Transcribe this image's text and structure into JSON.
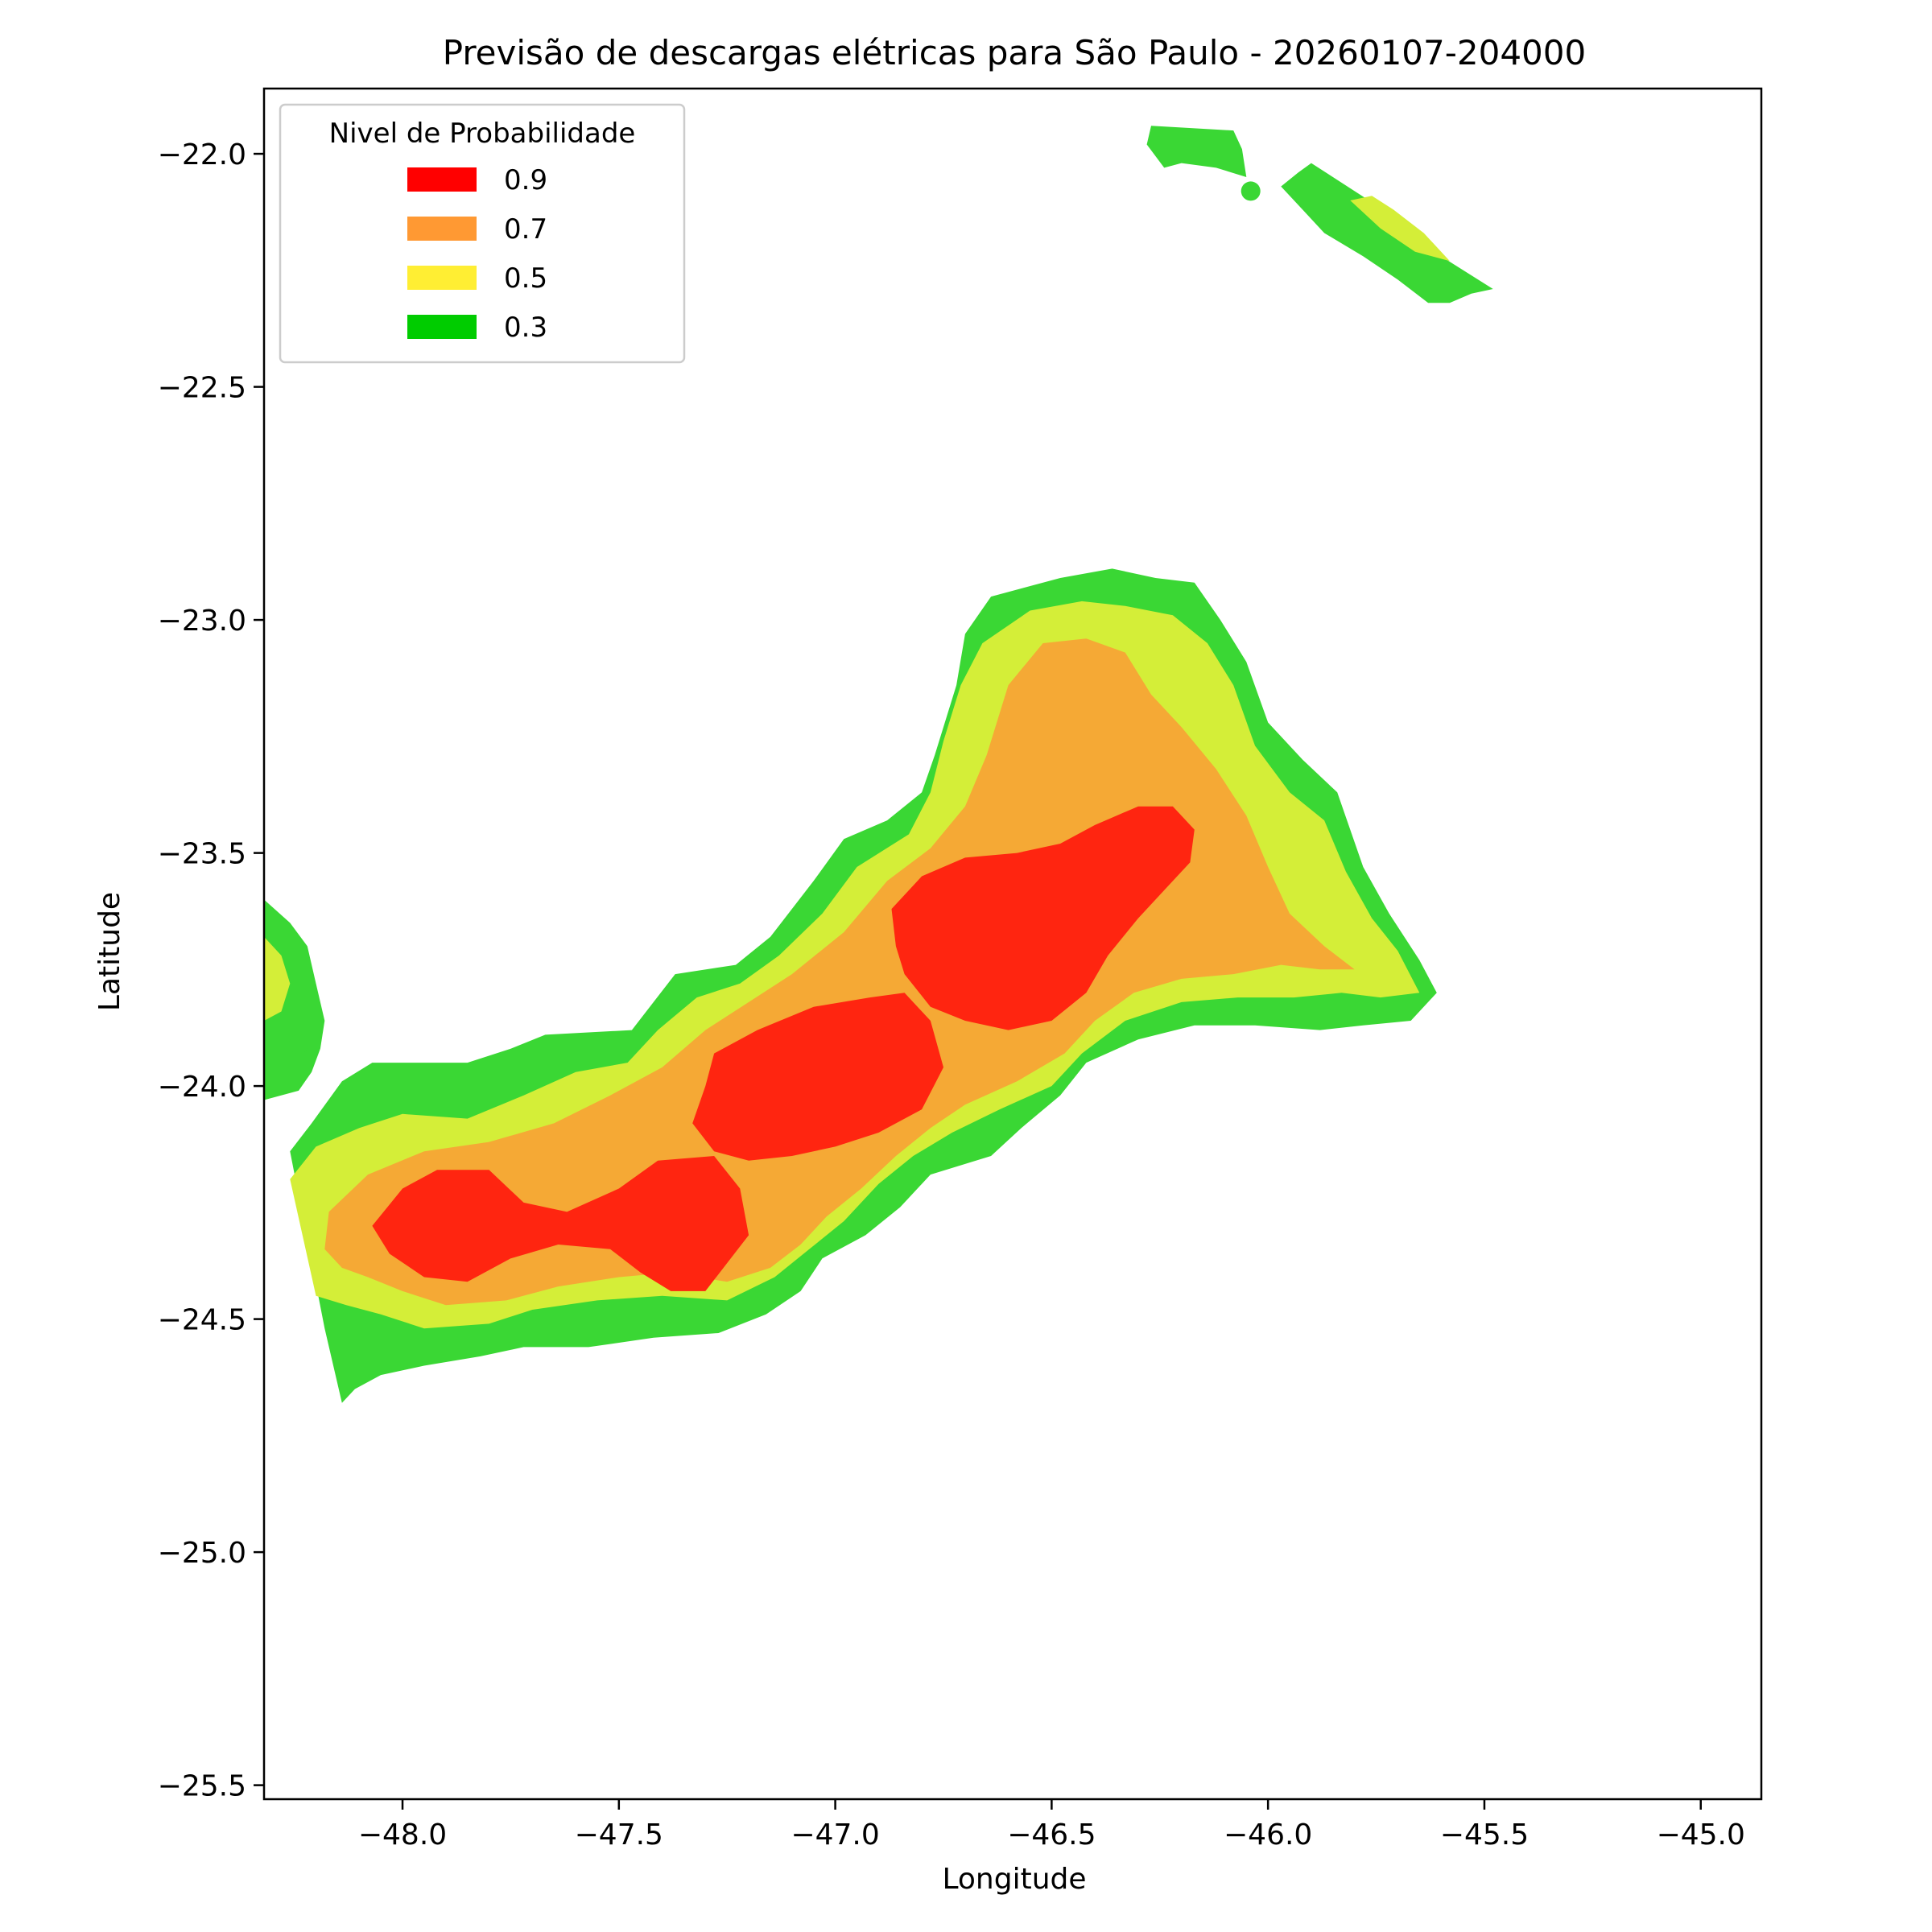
{
  "chart_data": {
    "type": "filled-contour-map",
    "title": "Previsão de descargas elétricas para São Paulo - 20260107-204000",
    "xlabel": "Longitude",
    "ylabel": "Latitude",
    "xlim": [
      -48.32,
      -44.86
    ],
    "ylim": [
      -25.53,
      -21.86
    ],
    "x_ticks": [
      -48.0,
      -47.5,
      -47.0,
      -46.5,
      -46.0,
      -45.5,
      -45.0
    ],
    "x_tick_labels": [
      "−48.0",
      "−47.5",
      "−47.0",
      "−46.5",
      "−46.0",
      "−45.5",
      "−45.0"
    ],
    "y_ticks": [
      -22.0,
      -22.5,
      -23.0,
      -23.5,
      -24.0,
      -24.5,
      -25.0,
      -25.5
    ],
    "y_tick_labels": [
      "−22.0",
      "−22.5",
      "−23.0",
      "−23.5",
      "−24.0",
      "−24.5",
      "−25.0",
      "−25.5"
    ],
    "grid": false,
    "legend": {
      "title": "Nivel de Probabilidade",
      "placement": "top-left",
      "entries": [
        {
          "label": "0.9",
          "color": "#ff0000"
        },
        {
          "label": "0.7",
          "color": "#ff9933"
        },
        {
          "label": "0.5",
          "color": "#ffee33"
        },
        {
          "label": "0.3",
          "color": "#00cc00"
        }
      ]
    },
    "fill_colors": {
      "0.3": "#3ad734",
      "0.5": "#d4ee38",
      "0.7": "#f5a935",
      "0.9": "#ff2510"
    },
    "regions": [
      {
        "level": "0.3",
        "name": "main-band",
        "points": [
          [
            -48.14,
            -24.68
          ],
          [
            -48.18,
            -24.52
          ],
          [
            -48.26,
            -24.14
          ],
          [
            -48.21,
            -24.08
          ],
          [
            -48.14,
            -23.99
          ],
          [
            -48.07,
            -23.95
          ],
          [
            -47.85,
            -23.95
          ],
          [
            -47.75,
            -23.92
          ],
          [
            -47.67,
            -23.89
          ],
          [
            -47.47,
            -23.88
          ],
          [
            -47.42,
            -23.82
          ],
          [
            -47.37,
            -23.76
          ],
          [
            -47.23,
            -23.74
          ],
          [
            -47.15,
            -23.68
          ],
          [
            -47.05,
            -23.56
          ],
          [
            -46.98,
            -23.47
          ],
          [
            -46.88,
            -23.43
          ],
          [
            -46.8,
            -23.37
          ],
          [
            -46.77,
            -23.29
          ],
          [
            -46.72,
            -23.14
          ],
          [
            -46.7,
            -23.03
          ],
          [
            -46.64,
            -22.95
          ],
          [
            -46.48,
            -22.91
          ],
          [
            -46.36,
            -22.89
          ],
          [
            -46.26,
            -22.91
          ],
          [
            -46.17,
            -22.92
          ],
          [
            -46.11,
            -23.0
          ],
          [
            -46.05,
            -23.09
          ],
          [
            -46.0,
            -23.22
          ],
          [
            -45.92,
            -23.3
          ],
          [
            -45.84,
            -23.37
          ],
          [
            -45.78,
            -23.53
          ],
          [
            -45.72,
            -23.63
          ],
          [
            -45.65,
            -23.73
          ],
          [
            -45.61,
            -23.8
          ],
          [
            -45.67,
            -23.86
          ],
          [
            -45.78,
            -23.87
          ],
          [
            -45.88,
            -23.88
          ],
          [
            -46.03,
            -23.87
          ],
          [
            -46.17,
            -23.87
          ],
          [
            -46.3,
            -23.9
          ],
          [
            -46.42,
            -23.95
          ],
          [
            -46.48,
            -24.02
          ],
          [
            -46.57,
            -24.09
          ],
          [
            -46.64,
            -24.15
          ],
          [
            -46.78,
            -24.19
          ],
          [
            -46.85,
            -24.26
          ],
          [
            -46.93,
            -24.32
          ],
          [
            -47.03,
            -24.37
          ],
          [
            -47.08,
            -24.44
          ],
          [
            -47.16,
            -24.49
          ],
          [
            -47.27,
            -24.53
          ],
          [
            -47.42,
            -24.54
          ],
          [
            -47.57,
            -24.56
          ],
          [
            -47.72,
            -24.56
          ],
          [
            -47.82,
            -24.58
          ],
          [
            -47.95,
            -24.6
          ],
          [
            -48.05,
            -24.62
          ],
          [
            -48.11,
            -24.65
          ]
        ]
      },
      {
        "level": "0.3",
        "name": "west-strip",
        "points": [
          [
            -48.32,
            -23.6
          ],
          [
            -48.26,
            -23.65
          ],
          [
            -48.22,
            -23.7
          ],
          [
            -48.2,
            -23.78
          ],
          [
            -48.18,
            -23.86
          ],
          [
            -48.19,
            -23.92
          ],
          [
            -48.21,
            -23.97
          ],
          [
            -48.24,
            -24.01
          ],
          [
            -48.32,
            -24.03
          ]
        ]
      },
      {
        "level": "0.3",
        "name": "northeast-upper",
        "points": [
          [
            -46.27,
            -21.94
          ],
          [
            -46.08,
            -21.95
          ],
          [
            -46.06,
            -21.99
          ],
          [
            -46.05,
            -22.05
          ],
          [
            -46.12,
            -22.03
          ],
          [
            -46.2,
            -22.02
          ],
          [
            -46.24,
            -22.03
          ],
          [
            -46.28,
            -21.98
          ]
        ]
      },
      {
        "level": "0.3",
        "name": "northeast-lower",
        "points": [
          [
            -45.9,
            -22.02
          ],
          [
            -45.8,
            -22.08
          ],
          [
            -45.7,
            -22.14
          ],
          [
            -45.6,
            -22.22
          ],
          [
            -45.48,
            -22.29
          ],
          [
            -45.53,
            -22.3
          ],
          [
            -45.58,
            -22.32
          ],
          [
            -45.63,
            -22.32
          ],
          [
            -45.7,
            -22.27
          ],
          [
            -45.78,
            -22.22
          ],
          [
            -45.87,
            -22.17
          ],
          [
            -45.92,
            -22.12
          ],
          [
            -45.97,
            -22.07
          ],
          [
            -45.93,
            -22.04
          ]
        ]
      },
      {
        "level": "0.5",
        "name": "main-band",
        "points": [
          [
            -48.2,
            -24.45
          ],
          [
            -48.26,
            -24.2
          ],
          [
            -48.2,
            -24.13
          ],
          [
            -48.1,
            -24.09
          ],
          [
            -48.0,
            -24.06
          ],
          [
            -47.85,
            -24.07
          ],
          [
            -47.72,
            -24.02
          ],
          [
            -47.6,
            -23.97
          ],
          [
            -47.48,
            -23.95
          ],
          [
            -47.41,
            -23.88
          ],
          [
            -47.32,
            -23.81
          ],
          [
            -47.22,
            -23.78
          ],
          [
            -47.13,
            -23.72
          ],
          [
            -47.03,
            -23.63
          ],
          [
            -46.95,
            -23.53
          ],
          [
            -46.83,
            -23.46
          ],
          [
            -46.78,
            -23.37
          ],
          [
            -46.75,
            -23.26
          ],
          [
            -46.71,
            -23.14
          ],
          [
            -46.66,
            -23.05
          ],
          [
            -46.55,
            -22.98
          ],
          [
            -46.43,
            -22.96
          ],
          [
            -46.33,
            -22.97
          ],
          [
            -46.22,
            -22.99
          ],
          [
            -46.14,
            -23.05
          ],
          [
            -46.08,
            -23.14
          ],
          [
            -46.03,
            -23.27
          ],
          [
            -45.95,
            -23.37
          ],
          [
            -45.87,
            -23.43
          ],
          [
            -45.82,
            -23.54
          ],
          [
            -45.76,
            -23.64
          ],
          [
            -45.7,
            -23.71
          ],
          [
            -45.65,
            -23.8
          ],
          [
            -45.74,
            -23.81
          ],
          [
            -45.83,
            -23.8
          ],
          [
            -45.94,
            -23.81
          ],
          [
            -46.07,
            -23.81
          ],
          [
            -46.2,
            -23.82
          ],
          [
            -46.33,
            -23.86
          ],
          [
            -46.43,
            -23.93
          ],
          [
            -46.5,
            -24.0
          ],
          [
            -46.62,
            -24.05
          ],
          [
            -46.73,
            -24.1
          ],
          [
            -46.82,
            -24.15
          ],
          [
            -46.9,
            -24.21
          ],
          [
            -46.98,
            -24.29
          ],
          [
            -47.06,
            -24.35
          ],
          [
            -47.14,
            -24.41
          ],
          [
            -47.25,
            -24.46
          ],
          [
            -47.4,
            -24.45
          ],
          [
            -47.55,
            -24.46
          ],
          [
            -47.7,
            -24.48
          ],
          [
            -47.8,
            -24.51
          ],
          [
            -47.95,
            -24.52
          ],
          [
            -48.05,
            -24.49
          ],
          [
            -48.13,
            -24.47
          ]
        ]
      },
      {
        "level": "0.5",
        "name": "west-strip",
        "points": [
          [
            -48.32,
            -23.68
          ],
          [
            -48.28,
            -23.72
          ],
          [
            -48.26,
            -23.78
          ],
          [
            -48.28,
            -23.84
          ],
          [
            -48.32,
            -23.86
          ]
        ]
      },
      {
        "level": "0.5",
        "name": "northeast-lower",
        "points": [
          [
            -45.81,
            -22.1
          ],
          [
            -45.74,
            -22.16
          ],
          [
            -45.66,
            -22.21
          ],
          [
            -45.58,
            -22.23
          ],
          [
            -45.64,
            -22.17
          ],
          [
            -45.71,
            -22.12
          ],
          [
            -45.76,
            -22.09
          ]
        ]
      },
      {
        "level": "0.7",
        "name": "main-band",
        "points": [
          [
            -48.18,
            -24.35
          ],
          [
            -48.17,
            -24.27
          ],
          [
            -48.08,
            -24.19
          ],
          [
            -47.95,
            -24.14
          ],
          [
            -47.8,
            -24.12
          ],
          [
            -47.65,
            -24.08
          ],
          [
            -47.52,
            -24.02
          ],
          [
            -47.4,
            -23.96
          ],
          [
            -47.3,
            -23.88
          ],
          [
            -47.2,
            -23.82
          ],
          [
            -47.1,
            -23.76
          ],
          [
            -46.98,
            -23.67
          ],
          [
            -46.88,
            -23.56
          ],
          [
            -46.78,
            -23.49
          ],
          [
            -46.7,
            -23.4
          ],
          [
            -46.65,
            -23.29
          ],
          [
            -46.6,
            -23.14
          ],
          [
            -46.52,
            -23.05
          ],
          [
            -46.42,
            -23.04
          ],
          [
            -46.33,
            -23.07
          ],
          [
            -46.27,
            -23.16
          ],
          [
            -46.2,
            -23.23
          ],
          [
            -46.12,
            -23.32
          ],
          [
            -46.05,
            -23.42
          ],
          [
            -46.0,
            -23.53
          ],
          [
            -45.95,
            -23.63
          ],
          [
            -45.87,
            -23.7
          ],
          [
            -45.8,
            -23.75
          ],
          [
            -45.88,
            -23.75
          ],
          [
            -45.97,
            -23.74
          ],
          [
            -46.08,
            -23.76
          ],
          [
            -46.2,
            -23.77
          ],
          [
            -46.31,
            -23.8
          ],
          [
            -46.4,
            -23.86
          ],
          [
            -46.47,
            -23.93
          ],
          [
            -46.58,
            -23.99
          ],
          [
            -46.7,
            -24.04
          ],
          [
            -46.78,
            -24.09
          ],
          [
            -46.86,
            -24.15
          ],
          [
            -46.94,
            -24.22
          ],
          [
            -47.02,
            -24.28
          ],
          [
            -47.08,
            -24.34
          ],
          [
            -47.15,
            -24.39
          ],
          [
            -47.25,
            -24.42
          ],
          [
            -47.38,
            -24.4
          ],
          [
            -47.5,
            -24.41
          ],
          [
            -47.64,
            -24.43
          ],
          [
            -47.76,
            -24.46
          ],
          [
            -47.9,
            -24.47
          ],
          [
            -48.0,
            -24.44
          ],
          [
            -48.08,
            -24.41
          ],
          [
            -48.14,
            -24.39
          ]
        ]
      },
      {
        "level": "0.9",
        "name": "west-blob",
        "points": [
          [
            -48.07,
            -24.3
          ],
          [
            -48.0,
            -24.22
          ],
          [
            -47.92,
            -24.18
          ],
          [
            -47.8,
            -24.18
          ],
          [
            -47.72,
            -24.25
          ],
          [
            -47.62,
            -24.27
          ],
          [
            -47.5,
            -24.22
          ],
          [
            -47.41,
            -24.16
          ],
          [
            -47.28,
            -24.15
          ],
          [
            -47.22,
            -24.22
          ],
          [
            -47.2,
            -24.32
          ],
          [
            -47.25,
            -24.38
          ],
          [
            -47.3,
            -24.44
          ],
          [
            -47.38,
            -24.44
          ],
          [
            -47.45,
            -24.4
          ],
          [
            -47.52,
            -24.35
          ],
          [
            -47.64,
            -24.34
          ],
          [
            -47.75,
            -24.37
          ],
          [
            -47.85,
            -24.42
          ],
          [
            -47.95,
            -24.41
          ],
          [
            -48.03,
            -24.36
          ]
        ]
      },
      {
        "level": "0.9",
        "name": "center-blob",
        "points": [
          [
            -47.33,
            -24.08
          ],
          [
            -47.3,
            -24.0
          ],
          [
            -47.28,
            -23.93
          ],
          [
            -47.18,
            -23.88
          ],
          [
            -47.05,
            -23.83
          ],
          [
            -46.92,
            -23.81
          ],
          [
            -46.84,
            -23.8
          ],
          [
            -46.78,
            -23.86
          ],
          [
            -46.75,
            -23.96
          ],
          [
            -46.8,
            -24.05
          ],
          [
            -46.9,
            -24.1
          ],
          [
            -47.0,
            -24.13
          ],
          [
            -47.1,
            -24.15
          ],
          [
            -47.2,
            -24.16
          ],
          [
            -47.28,
            -24.14
          ]
        ]
      },
      {
        "level": "0.9",
        "name": "east-blob",
        "points": [
          [
            -46.87,
            -23.62
          ],
          [
            -46.8,
            -23.55
          ],
          [
            -46.7,
            -23.51
          ],
          [
            -46.58,
            -23.5
          ],
          [
            -46.48,
            -23.48
          ],
          [
            -46.4,
            -23.44
          ],
          [
            -46.3,
            -23.4
          ],
          [
            -46.22,
            -23.4
          ],
          [
            -46.17,
            -23.45
          ],
          [
            -46.18,
            -23.52
          ],
          [
            -46.24,
            -23.58
          ],
          [
            -46.3,
            -23.64
          ],
          [
            -46.37,
            -23.72
          ],
          [
            -46.42,
            -23.8
          ],
          [
            -46.5,
            -23.86
          ],
          [
            -46.6,
            -23.88
          ],
          [
            -46.7,
            -23.86
          ],
          [
            -46.78,
            -23.83
          ],
          [
            -46.84,
            -23.76
          ],
          [
            -46.86,
            -23.7
          ]
        ]
      }
    ],
    "markers": [
      {
        "level": "0.3",
        "lon": -48.24,
        "lat": -23.91
      },
      {
        "level": "0.3",
        "lon": -46.04,
        "lat": -22.08
      }
    ]
  }
}
